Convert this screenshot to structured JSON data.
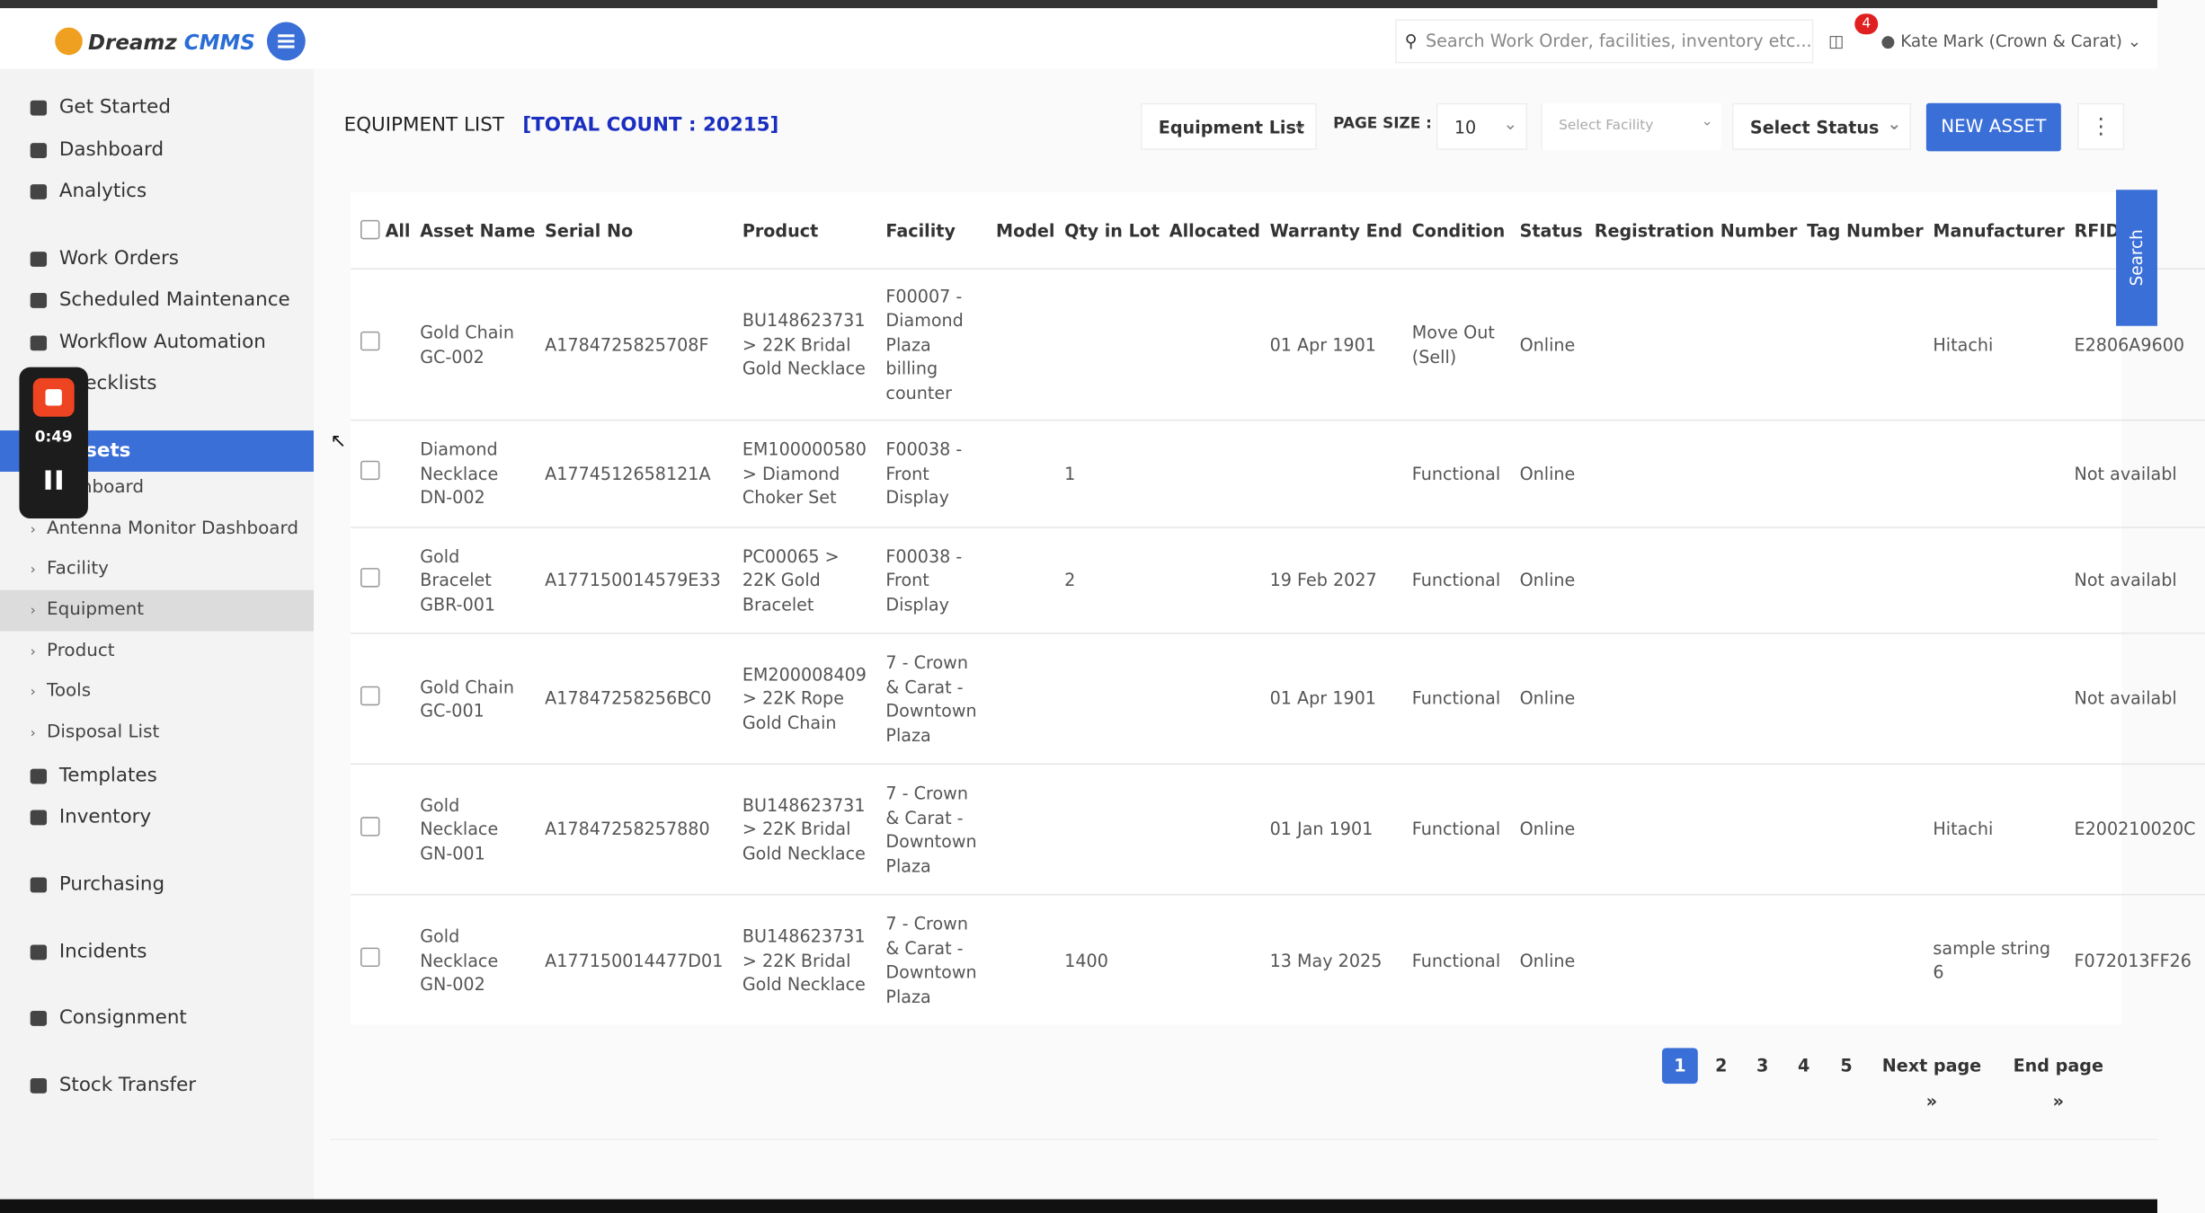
{
  "header": {
    "logo": "Dreamz",
    "logo_suffix": "CMMS",
    "search_placeholder": "Search Work Order, facilities, inventory etc...",
    "notification_count": 4,
    "user": "Kate Mark (Crown & Carat)"
  },
  "sidebar": {
    "items": [
      {
        "label": "Get Started"
      },
      {
        "label": "Dashboard"
      },
      {
        "label": "Analytics"
      },
      {
        "label": "Work Orders"
      },
      {
        "label": "Scheduled Maintenance"
      },
      {
        "label": "Workflow Automation"
      },
      {
        "label": "Checklists"
      },
      {
        "label": "Assets",
        "children": [
          "Dashboard",
          "Antenna Monitor Dashboard",
          "Facility",
          "Equipment",
          "Product",
          "Tools",
          "Disposal List"
        ]
      },
      {
        "label": "Templates"
      },
      {
        "label": "Inventory"
      },
      {
        "label": "Purchasing"
      },
      {
        "label": "Incidents"
      },
      {
        "label": "Consignment"
      },
      {
        "label": "Stock Transfer"
      }
    ]
  },
  "recorder": {
    "time": "0:49"
  },
  "page": {
    "title": "EQUIPMENT LIST",
    "count": "[TOTAL COUNT : 20215]"
  },
  "toolbar": {
    "view": "Equipment List",
    "page_size_label": "PAGE SIZE :",
    "page_size": 10,
    "facility": "Select Facility",
    "status": "Select Status",
    "new_button": "NEW ASSET"
  },
  "table": {
    "columns": [
      "All",
      "Asset Name",
      "Serial No",
      "Product",
      "Facility",
      "Model",
      "Qty in Lot",
      "Allocated",
      "Warranty End",
      "Condition",
      "Status",
      "Registration Number",
      "Tag Number",
      "Manufacturer",
      "RFID"
    ],
    "rows": [
      [
        "Gold Chain GC-002",
        "A1784725825708F",
        "BU148623731 > 22K Bridal Gold Necklace",
        "F00007 - Diamond Plaza billing counter",
        null,
        null,
        null,
        "01 Apr 1901",
        "Move Out (Sell)",
        "Online",
        null,
        null,
        "Hitachi",
        "E2806A9600"
      ],
      [
        "Diamond Necklace DN-002",
        "A1774512658121A",
        "EM100000580 > Diamond Choker Set",
        "F00038 - Front Display",
        null,
        1,
        null,
        null,
        "Functional",
        "Online",
        null,
        null,
        null,
        "Not availabl"
      ],
      [
        "Gold Bracelet GBR-001",
        "A177150014579E33",
        "PC00065 > 22K Gold Bracelet",
        "F00038 - Front Display",
        null,
        2,
        null,
        "19 Feb 2027",
        "Functional",
        "Online",
        null,
        null,
        null,
        "Not availabl"
      ],
      [
        "Gold Chain GC-001",
        "A17847258256BC0",
        "EM200008409 > 22K Rope Gold Chain",
        "7 - Crown & Carat - Downtown Plaza",
        null,
        null,
        null,
        "01 Apr 1901",
        "Functional",
        "Online",
        null,
        null,
        null,
        "Not availabl"
      ],
      [
        "Gold Necklace GN-001",
        "A17847258257880",
        "BU148623731 > 22K Bridal Gold Necklace",
        "7 - Crown & Carat - Downtown Plaza",
        null,
        null,
        null,
        "01 Jan 1901",
        "Functional",
        "Online",
        null,
        null,
        "Hitachi",
        "E200210020C"
      ],
      [
        "Gold Necklace GN-002",
        "A177150014477D01",
        "BU148623731 > 22K Bridal Gold Necklace",
        "7 - Crown & Carat - Downtown Plaza",
        null,
        1400,
        null,
        "13 May 2025",
        "Functional",
        "Online",
        null,
        null,
        "sample string 6",
        "F072013FF26"
      ]
    ]
  },
  "pagination": {
    "pages": [
      1,
      2,
      3,
      4,
      5
    ],
    "next": "Next page »",
    "end": "End page »"
  },
  "side_tab": "Search"
}
